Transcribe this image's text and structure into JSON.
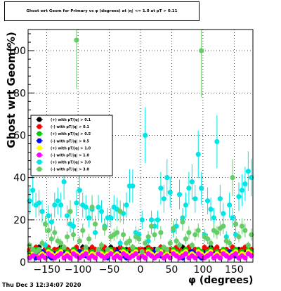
{
  "chart_data": {
    "type": "scatter",
    "title": "Ghost wrt Geom for Primary vs φ (degrees) at |η| <= 1.0 at pT > 0.11",
    "xlabel": "φ (degrees)",
    "ylabel": "Ghost wrt Geom(%)",
    "xlim": [
      -180,
      180
    ],
    "ylim": [
      0,
      110
    ],
    "xticks": [
      -150,
      -100,
      -50,
      0,
      50,
      100,
      150
    ],
    "yticks": [
      0,
      20,
      40,
      60,
      80,
      100
    ],
    "xtick_labels": [
      "−150",
      "−100",
      "−50",
      "0",
      "50",
      "100",
      "150"
    ],
    "ytick_labels": [
      "0",
      "20",
      "40",
      "60",
      "80",
      "100"
    ],
    "grid": true,
    "legend_position": "left-middle",
    "timestamp": "Thu Dec  3 12:34:07 2020",
    "bin_width": 5,
    "series": [
      {
        "name": "(+) with pT/|q| > 0.1",
        "color": "#000000",
        "values": [
          5,
          6,
          4,
          7,
          5,
          6,
          5,
          4,
          6,
          5,
          7,
          5,
          6,
          4,
          5,
          6,
          5,
          7,
          4,
          6,
          5,
          6,
          5,
          4,
          6,
          5,
          7,
          5,
          6,
          4,
          5,
          6,
          5,
          7,
          4,
          6,
          5,
          6,
          5,
          4,
          6,
          5,
          7,
          5,
          6,
          4,
          5,
          6,
          5,
          7,
          4,
          6,
          5,
          6,
          5,
          4,
          6,
          5,
          7,
          5,
          6,
          4,
          5,
          6,
          5,
          7,
          4,
          6,
          5,
          6,
          5,
          4
        ]
      },
      {
        "name": "(-) with pT/|q| > 0.1",
        "color": "#ff0000",
        "values": [
          6,
          5,
          7,
          6,
          5,
          6,
          7,
          5,
          6,
          6,
          5,
          7,
          6,
          5,
          6,
          7,
          5,
          6,
          6,
          5,
          7,
          6,
          5,
          6,
          7,
          5,
          6,
          6,
          5,
          7,
          6,
          5,
          6,
          7,
          5,
          6,
          6,
          5,
          7,
          6,
          5,
          6,
          7,
          5,
          6,
          6,
          5,
          7,
          6,
          5,
          6,
          7,
          5,
          6,
          6,
          5,
          7,
          6,
          5,
          6,
          7,
          5,
          6,
          6,
          5,
          7,
          6,
          5,
          6,
          7,
          5,
          6
        ]
      },
      {
        "name": "(+) with pT/|q| > 0.5",
        "color": "#00cc00",
        "values": [
          4,
          5,
          6,
          4,
          5,
          3,
          6,
          5,
          4,
          5,
          6,
          4,
          5,
          3,
          6,
          5,
          4,
          5,
          6,
          4,
          5,
          3,
          6,
          5,
          4,
          5,
          6,
          4,
          5,
          3,
          6,
          5,
          4,
          5,
          6,
          4,
          5,
          3,
          6,
          5,
          4,
          5,
          6,
          4,
          5,
          3,
          6,
          5,
          4,
          5,
          6,
          4,
          5,
          3,
          6,
          5,
          4,
          5,
          6,
          4,
          5,
          3,
          6,
          5,
          4,
          5,
          6,
          4,
          5,
          3,
          6,
          5
        ]
      },
      {
        "name": "(-) with pT/|q| > 0.5",
        "color": "#0000ff",
        "values": [
          3,
          4,
          2,
          3,
          5,
          4,
          3,
          2,
          4,
          3,
          5,
          4,
          3,
          2,
          4,
          3,
          5,
          4,
          3,
          2,
          4,
          3,
          5,
          4,
          3,
          2,
          4,
          3,
          5,
          4,
          3,
          2,
          4,
          3,
          5,
          4,
          3,
          2,
          4,
          3,
          5,
          4,
          3,
          2,
          4,
          3,
          5,
          4,
          3,
          2,
          4,
          3,
          5,
          4,
          3,
          2,
          4,
          3,
          5,
          4,
          3,
          2,
          4,
          3,
          5,
          4,
          3,
          2,
          4,
          3,
          5,
          4
        ]
      },
      {
        "name": "(+) with pT/|q| > 1.0",
        "color": "#ffff00",
        "values": [
          3,
          4,
          5,
          3,
          4,
          3,
          5,
          4,
          3,
          4,
          5,
          3,
          4,
          3,
          5,
          4,
          3,
          4,
          5,
          3,
          4,
          3,
          5,
          4,
          3,
          4,
          5,
          3,
          4,
          3,
          5,
          4,
          3,
          4,
          5,
          3,
          4,
          3,
          5,
          4,
          3,
          4,
          5,
          3,
          4,
          3,
          5,
          4,
          3,
          4,
          5,
          3,
          4,
          3,
          5,
          4,
          3,
          4,
          5,
          3,
          4,
          3,
          5,
          4,
          3,
          4,
          5,
          3,
          4,
          3,
          5,
          4
        ]
      },
      {
        "name": "(-) with pT/|q| > 1.0",
        "color": "#ff00ff",
        "values": [
          2,
          3,
          4,
          2,
          3,
          2,
          4,
          3,
          2,
          3,
          4,
          2,
          3,
          2,
          4,
          3,
          2,
          3,
          4,
          2,
          3,
          2,
          4,
          3,
          2,
          3,
          4,
          2,
          3,
          2,
          4,
          3,
          2,
          3,
          4,
          2,
          3,
          2,
          4,
          3,
          2,
          3,
          4,
          2,
          3,
          2,
          4,
          3,
          2,
          3,
          4,
          2,
          3,
          2,
          4,
          3,
          2,
          3,
          4,
          2,
          3,
          2,
          4,
          3,
          2,
          3,
          4,
          2,
          3,
          2,
          4,
          3
        ]
      },
      {
        "name": "(+) with pT/|q| > 3.0",
        "color": "#00e5e5",
        "values": [
          29,
          34,
          27,
          28,
          24,
          8,
          22,
          19,
          27,
          29,
          27,
          38,
          22,
          18,
          17,
          28,
          34,
          27,
          26,
          21,
          25,
          14,
          26,
          24,
          17,
          21,
          21,
          26,
          25,
          9,
          23,
          27,
          36,
          36,
          14,
          13,
          20,
          60,
          10,
          20,
          17,
          20,
          35,
          30,
          40,
          33,
          15,
          17,
          32,
          21,
          27,
          35,
          38,
          30,
          51,
          35,
          13,
          29,
          25,
          21,
          57,
          30,
          23,
          12,
          27,
          21,
          13,
          31,
          34,
          37,
          43,
          40
        ]
      },
      {
        "name": "(-) with pT/|q| > 3.0",
        "color": "#66cc66",
        "values": [
          8,
          6,
          5,
          6,
          9,
          18,
          15,
          11,
          14,
          10,
          9,
          7,
          12,
          24,
          13,
          105,
          10,
          15,
          7,
          11,
          26,
          18,
          6,
          8,
          16,
          6,
          12,
          13,
          14,
          24,
          13,
          9,
          10,
          7,
          12,
          11,
          5,
          9,
          12,
          17,
          13,
          6,
          14,
          7,
          6,
          9,
          16,
          10,
          8,
          19,
          11,
          14,
          8,
          13,
          15,
          100,
          12,
          11,
          9,
          15,
          14,
          16,
          17,
          10,
          9,
          40,
          18,
          12,
          17,
          15,
          8,
          13
        ]
      }
    ]
  }
}
